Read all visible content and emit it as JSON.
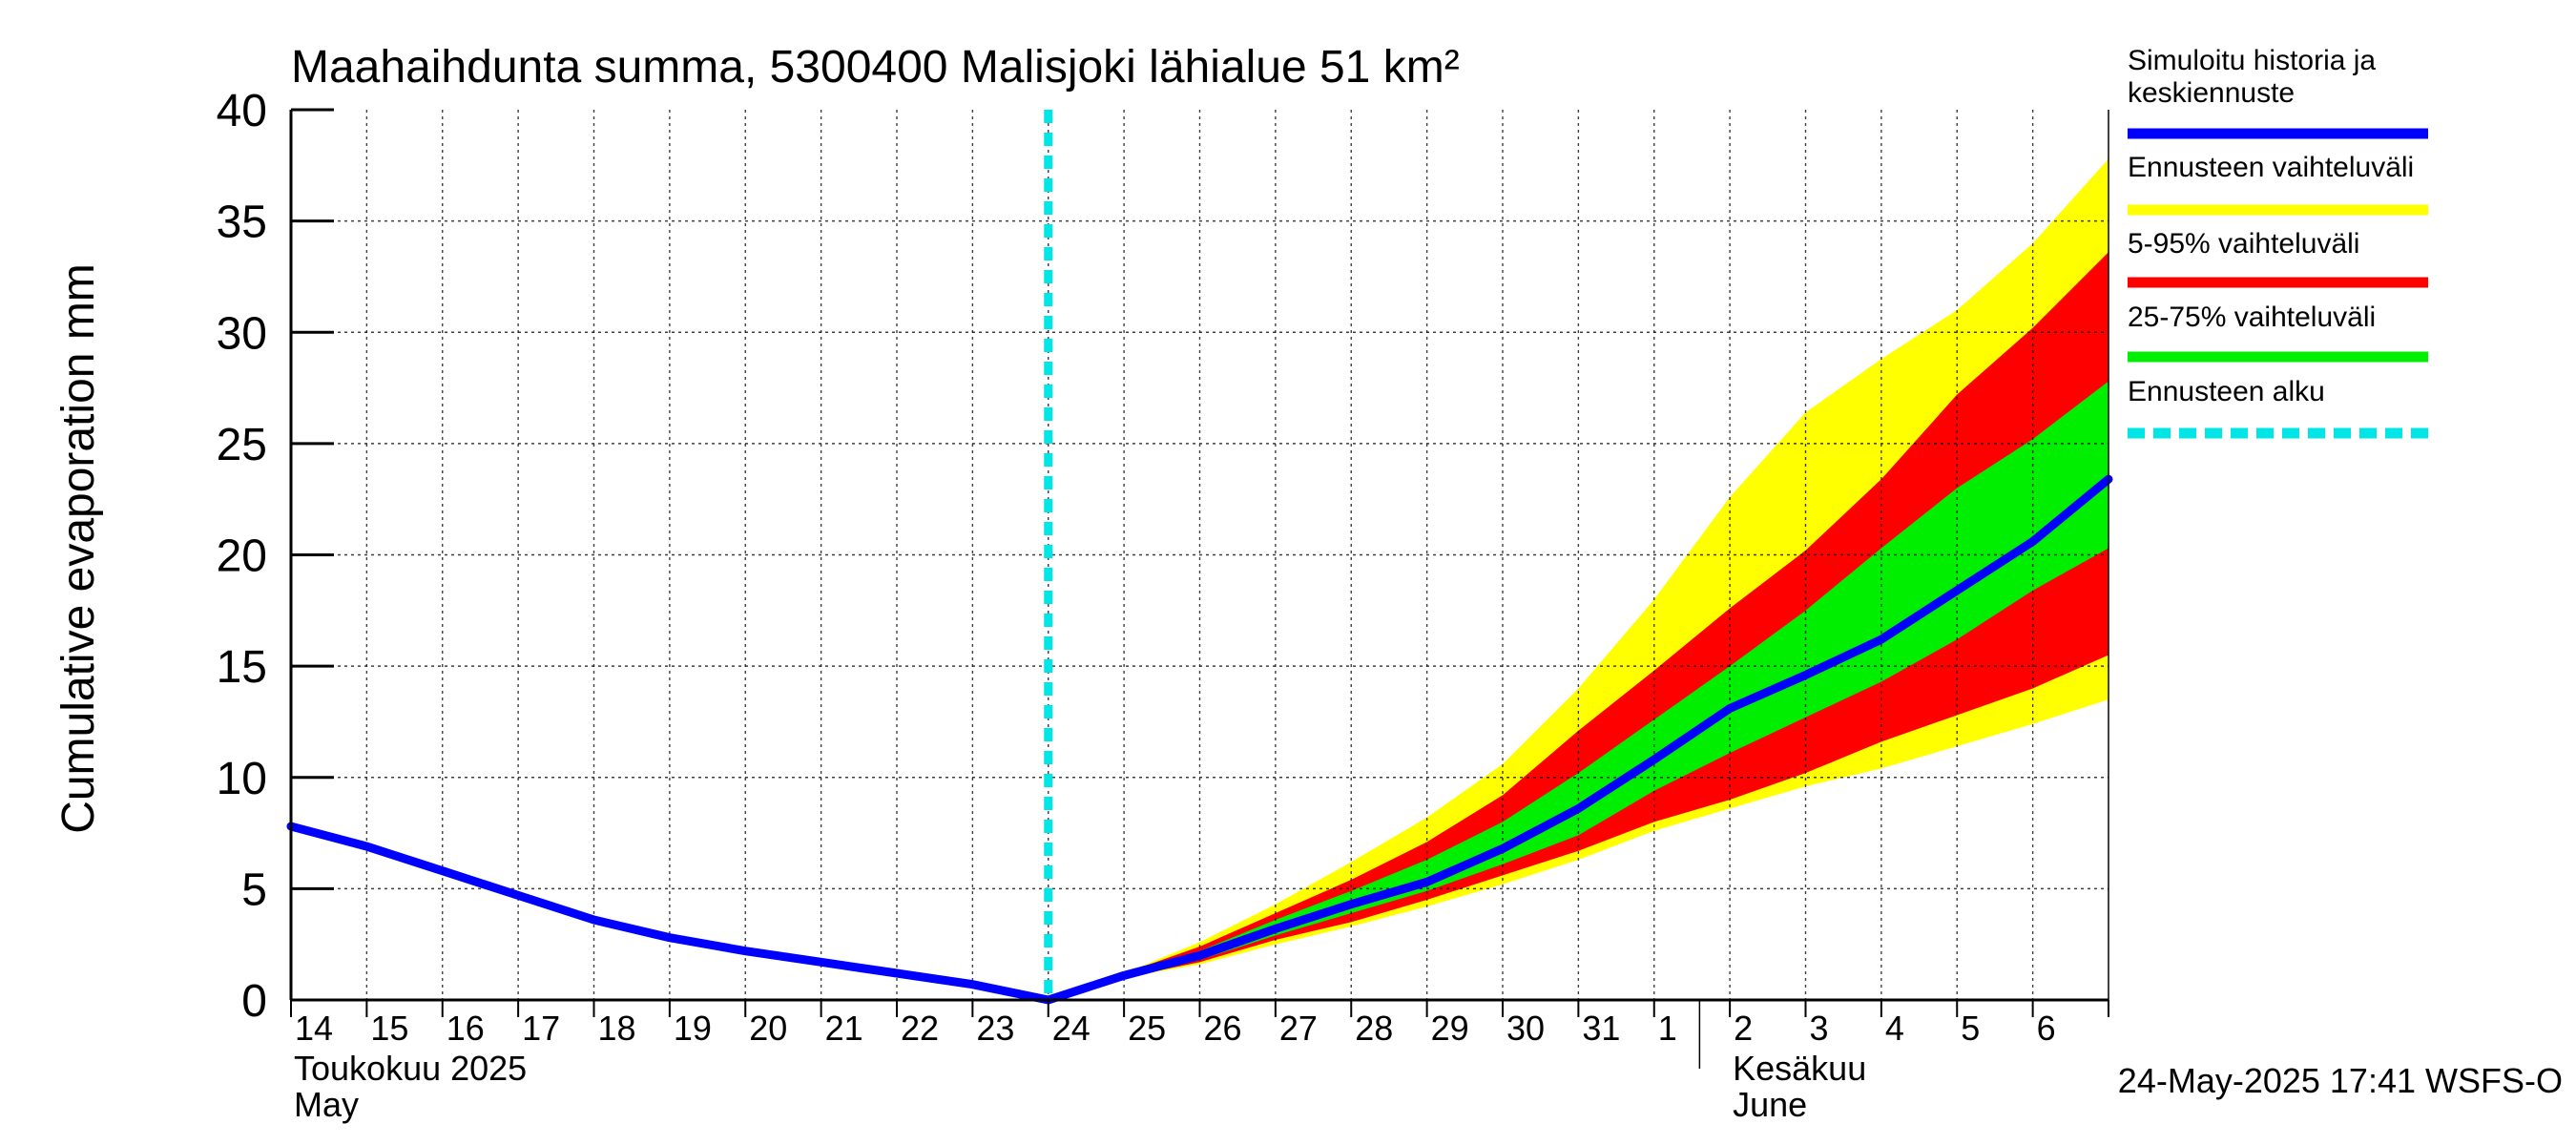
{
  "chart_data": {
    "type": "area",
    "title": "Maahaihdunta summa, 5300400 Malisjoki lähialue 51 km²",
    "ylabel": "Cumulative evaporation   mm",
    "ylim": [
      0,
      40
    ],
    "yticks": [
      0,
      5,
      10,
      15,
      20,
      25,
      30,
      35,
      40
    ],
    "x_range_days": [
      0,
      24
    ],
    "x_tick_labels": [
      "14",
      "15",
      "16",
      "17",
      "18",
      "19",
      "20",
      "21",
      "22",
      "23",
      "24",
      "25",
      "26",
      "27",
      "28",
      "29",
      "30",
      "31",
      "1",
      "2",
      "3",
      "4",
      "5",
      "6"
    ],
    "month_labels": [
      {
        "day": 0,
        "line1": "Toukokuu  2025",
        "line2": "May"
      },
      {
        "day": 19,
        "line1": "Kesäkuu",
        "line2": "June"
      }
    ],
    "month_divider_day": 18.6,
    "forecast_start_day": 10,
    "x": [
      0,
      1,
      2,
      3,
      4,
      5,
      6,
      7,
      8,
      9,
      10,
      11,
      12,
      13,
      14,
      15,
      16,
      17,
      18,
      19,
      20,
      21,
      22,
      23,
      24
    ],
    "series": [
      {
        "name": "Simuloitu historia ja keskiennuste",
        "color": "#0000ff",
        "values": [
          7.8,
          6.9,
          5.8,
          4.7,
          3.6,
          2.8,
          2.2,
          1.7,
          1.2,
          0.7,
          0.0,
          1.1,
          2.0,
          3.2,
          4.3,
          5.3,
          6.8,
          8.6,
          10.8,
          13.1,
          14.6,
          16.2,
          18.4,
          20.6,
          23.4
        ]
      },
      {
        "name": "Ennusteen vaihteluväli",
        "color": "#ffff00",
        "upper": [
          null,
          null,
          null,
          null,
          null,
          null,
          null,
          null,
          null,
          null,
          0.0,
          1.2,
          2.6,
          4.3,
          6.2,
          8.2,
          10.6,
          14.0,
          18.0,
          22.6,
          26.4,
          28.8,
          31.0,
          34.0,
          37.8
        ],
        "lower": [
          null,
          null,
          null,
          null,
          null,
          null,
          null,
          null,
          null,
          null,
          0.0,
          1.0,
          1.6,
          2.5,
          3.3,
          4.2,
          5.2,
          6.3,
          7.6,
          8.6,
          9.6,
          10.4,
          11.4,
          12.4,
          13.5
        ]
      },
      {
        "name": "5-95% vaihteluväli",
        "color": "#ff0000",
        "upper": [
          null,
          null,
          null,
          null,
          null,
          null,
          null,
          null,
          null,
          null,
          0.0,
          1.2,
          2.4,
          3.9,
          5.4,
          7.1,
          9.2,
          12.1,
          14.8,
          17.6,
          20.2,
          23.4,
          27.2,
          30.2,
          33.6
        ],
        "lower": [
          null,
          null,
          null,
          null,
          null,
          null,
          null,
          null,
          null,
          null,
          0.0,
          1.0,
          1.7,
          2.7,
          3.5,
          4.5,
          5.6,
          6.7,
          8.0,
          9.0,
          10.2,
          11.6,
          12.8,
          14.0,
          15.5
        ]
      },
      {
        "name": "25-75% vaihteluväli",
        "color": "#00ee00",
        "upper": [
          null,
          null,
          null,
          null,
          null,
          null,
          null,
          null,
          null,
          null,
          0.0,
          1.1,
          2.2,
          3.6,
          4.9,
          6.3,
          8.0,
          10.2,
          12.6,
          15.0,
          17.5,
          20.3,
          23.0,
          25.2,
          27.8
        ],
        "lower": [
          null,
          null,
          null,
          null,
          null,
          null,
          null,
          null,
          null,
          null,
          0.0,
          1.0,
          1.8,
          2.9,
          3.9,
          4.9,
          6.1,
          7.4,
          9.4,
          11.1,
          12.7,
          14.3,
          16.2,
          18.4,
          20.3
        ]
      }
    ],
    "legend": [
      {
        "label": "Simuloitu historia ja\nkeskiennuste",
        "color": "#0000ff",
        "style": "solid"
      },
      {
        "label": "Ennusteen vaihteluväli",
        "color": "#ffff00",
        "style": "solid"
      },
      {
        "label": "5-95% vaihteluväli",
        "color": "#ff0000",
        "style": "solid"
      },
      {
        "label": "25-75% vaihteluväli",
        "color": "#00ee00",
        "style": "solid"
      },
      {
        "label": "Ennusteen alku",
        "color": "#00e5e5",
        "style": "dashed"
      }
    ],
    "legend_position": "right",
    "footer": "24-May-2025 17:41 WSFS-O"
  }
}
